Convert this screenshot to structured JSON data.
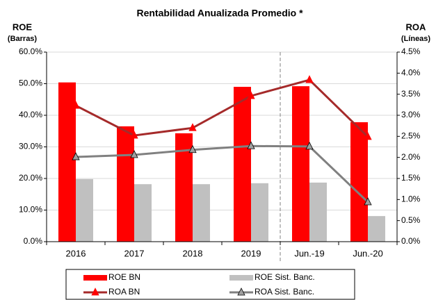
{
  "chart_data": {
    "type": "bar_line",
    "title": "Rentabilidad Anualizada Promedio *",
    "y_label": "ROE",
    "y_sublabel": "(Barras)",
    "y2_label": "ROA",
    "y2_sublabel": "(Líneas)",
    "categories": [
      "2016",
      "2017",
      "2018",
      "2019",
      "Jun.-19",
      "Jun.-20"
    ],
    "series": [
      {
        "name": "ROE BN",
        "kind": "bar",
        "color": "#ff0000",
        "values": [
          50.4,
          36.5,
          34.3,
          49.0,
          49.2,
          37.8
        ]
      },
      {
        "name": "ROE Sist. Banc.",
        "kind": "bar",
        "color": "#c0c0c0",
        "values": [
          19.8,
          18.2,
          18.2,
          18.5,
          18.7,
          8.1
        ]
      },
      {
        "name": "ROA BN",
        "kind": "line",
        "axis": "y2",
        "color": "#a52a2a",
        "marker_color": "#ff0000",
        "values": [
          3.23,
          2.52,
          2.7,
          3.46,
          3.84,
          2.49
        ]
      },
      {
        "name": "ROA Sist. Banc.",
        "kind": "line",
        "axis": "y2",
        "color": "#808080",
        "marker_color": "#a0a0a0",
        "values": [
          2.01,
          2.06,
          2.18,
          2.27,
          2.26,
          0.94
        ]
      }
    ],
    "ylim": [
      0,
      60
    ],
    "yticks": [
      {
        "value": 0,
        "label": "0.0%"
      },
      {
        "value": 10,
        "label": "10.0%"
      },
      {
        "value": 20,
        "label": "20.0%"
      },
      {
        "value": 30,
        "label": "30.0%"
      },
      {
        "value": 40,
        "label": "40.0%"
      },
      {
        "value": 50,
        "label": "50.0%"
      },
      {
        "value": 60,
        "label": "60.0%"
      }
    ],
    "y2lim": [
      0,
      4.5
    ],
    "y2ticks": [
      {
        "value": 0,
        "label": "0.0%"
      },
      {
        "value": 0.5,
        "label": "0.5%"
      },
      {
        "value": 1,
        "label": "1.0%"
      },
      {
        "value": 1.5,
        "label": "1.5%"
      },
      {
        "value": 2,
        "label": "2.0%"
      },
      {
        "value": 2.5,
        "label": "2.5%"
      },
      {
        "value": 3,
        "label": "3.0%"
      },
      {
        "value": 3.5,
        "label": "3.5%"
      },
      {
        "value": 4,
        "label": "4.0%"
      },
      {
        "value": 4.5,
        "label": "4.5%"
      }
    ],
    "grid": true
  }
}
